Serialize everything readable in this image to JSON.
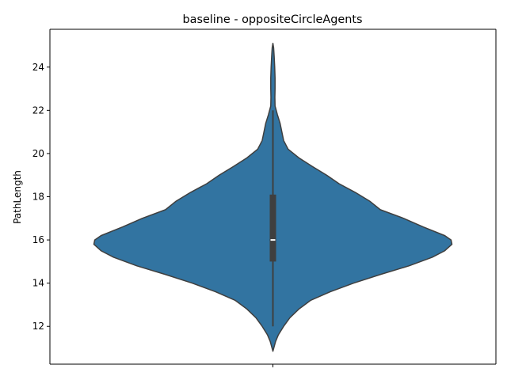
{
  "chart_data": {
    "type": "violin",
    "title": "baseline - oppositeCircleAgents",
    "xlabel": "",
    "ylabel": "PathLength",
    "ylim": [
      10.25,
      25.75
    ],
    "yticks": [
      12,
      14,
      16,
      18,
      20,
      22,
      24
    ],
    "yticklabels": [
      "12",
      "14",
      "16",
      "18",
      "20",
      "22",
      "24"
    ],
    "grid": false,
    "legend": "none",
    "colors": {
      "violin": "#3274a1",
      "outline": "#3f3f3f",
      "box": "#3f3f3f",
      "median": "#ffffff"
    },
    "violin": {
      "min": 10.85,
      "max": 25.1,
      "whisker_low": 12.0,
      "whisker_high": 22.0,
      "q1": 15.0,
      "median": 16.0,
      "q3": 18.1,
      "density_profile": [
        [
          10.85,
          0.0
        ],
        [
          11.0,
          0.005
        ],
        [
          11.3,
          0.015
        ],
        [
          11.6,
          0.03
        ],
        [
          12.0,
          0.06
        ],
        [
          12.4,
          0.095
        ],
        [
          12.8,
          0.145
        ],
        [
          13.2,
          0.21
        ],
        [
          13.6,
          0.32
        ],
        [
          14.0,
          0.45
        ],
        [
          14.4,
          0.6
        ],
        [
          14.8,
          0.76
        ],
        [
          15.2,
          0.89
        ],
        [
          15.5,
          0.96
        ],
        [
          15.8,
          1.0
        ],
        [
          16.0,
          0.995
        ],
        [
          16.2,
          0.96
        ],
        [
          16.6,
          0.84
        ],
        [
          17.0,
          0.73
        ],
        [
          17.4,
          0.6
        ],
        [
          17.8,
          0.54
        ],
        [
          18.2,
          0.46
        ],
        [
          18.6,
          0.37
        ],
        [
          19.0,
          0.3
        ],
        [
          19.4,
          0.22
        ],
        [
          19.8,
          0.145
        ],
        [
          20.2,
          0.085
        ],
        [
          20.6,
          0.06
        ],
        [
          21.0,
          0.05
        ],
        [
          21.4,
          0.04
        ],
        [
          21.8,
          0.025
        ],
        [
          22.2,
          0.012
        ],
        [
          22.6,
          0.011
        ],
        [
          23.0,
          0.012
        ],
        [
          23.5,
          0.012
        ],
        [
          24.0,
          0.01
        ],
        [
          24.5,
          0.007
        ],
        [
          24.9,
          0.004
        ],
        [
          25.1,
          0.0
        ]
      ]
    }
  }
}
